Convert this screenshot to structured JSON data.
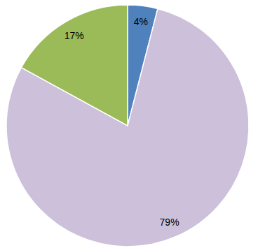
{
  "chart_data": {
    "type": "pie",
    "values": [
      4,
      79,
      17
    ],
    "value_labels": [
      "4%",
      "79%",
      "17%"
    ],
    "colors": [
      "#4f81bd",
      "#ccc0da",
      "#9bbb59"
    ],
    "data_labels": true
  }
}
